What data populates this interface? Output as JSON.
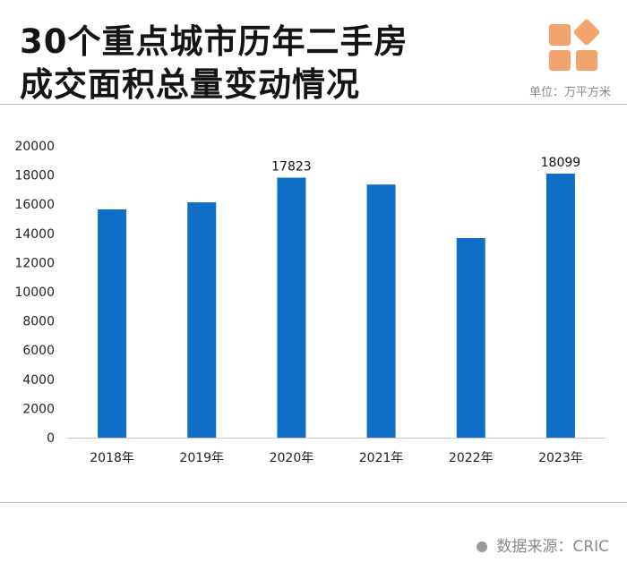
{
  "header": {
    "title_line1": "30个重点城市历年二手房",
    "title_line2": "成交面积总量变动情况",
    "unit": "单位：万平方米",
    "brand_color": "#f2a46c"
  },
  "footer": {
    "source": "数据来源：CRIC"
  },
  "chart_data": {
    "type": "bar",
    "title": "30个重点城市历年二手房成交面积总量变动情况",
    "xlabel": "",
    "ylabel": "单位：万平方米",
    "categories": [
      "2018年",
      "2019年",
      "2020年",
      "2021年",
      "2022年",
      "2023年"
    ],
    "values": [
      15650,
      16130,
      17823,
      17350,
      13680,
      18099
    ],
    "data_labels": [
      "",
      "",
      "17823",
      "",
      "",
      "18099"
    ],
    "ylim": [
      0,
      20000
    ],
    "yticks": [
      0,
      2000,
      4000,
      6000,
      8000,
      10000,
      12000,
      14000,
      16000,
      18000,
      20000
    ],
    "grid": false,
    "bar_color": "#0f6fc6"
  }
}
